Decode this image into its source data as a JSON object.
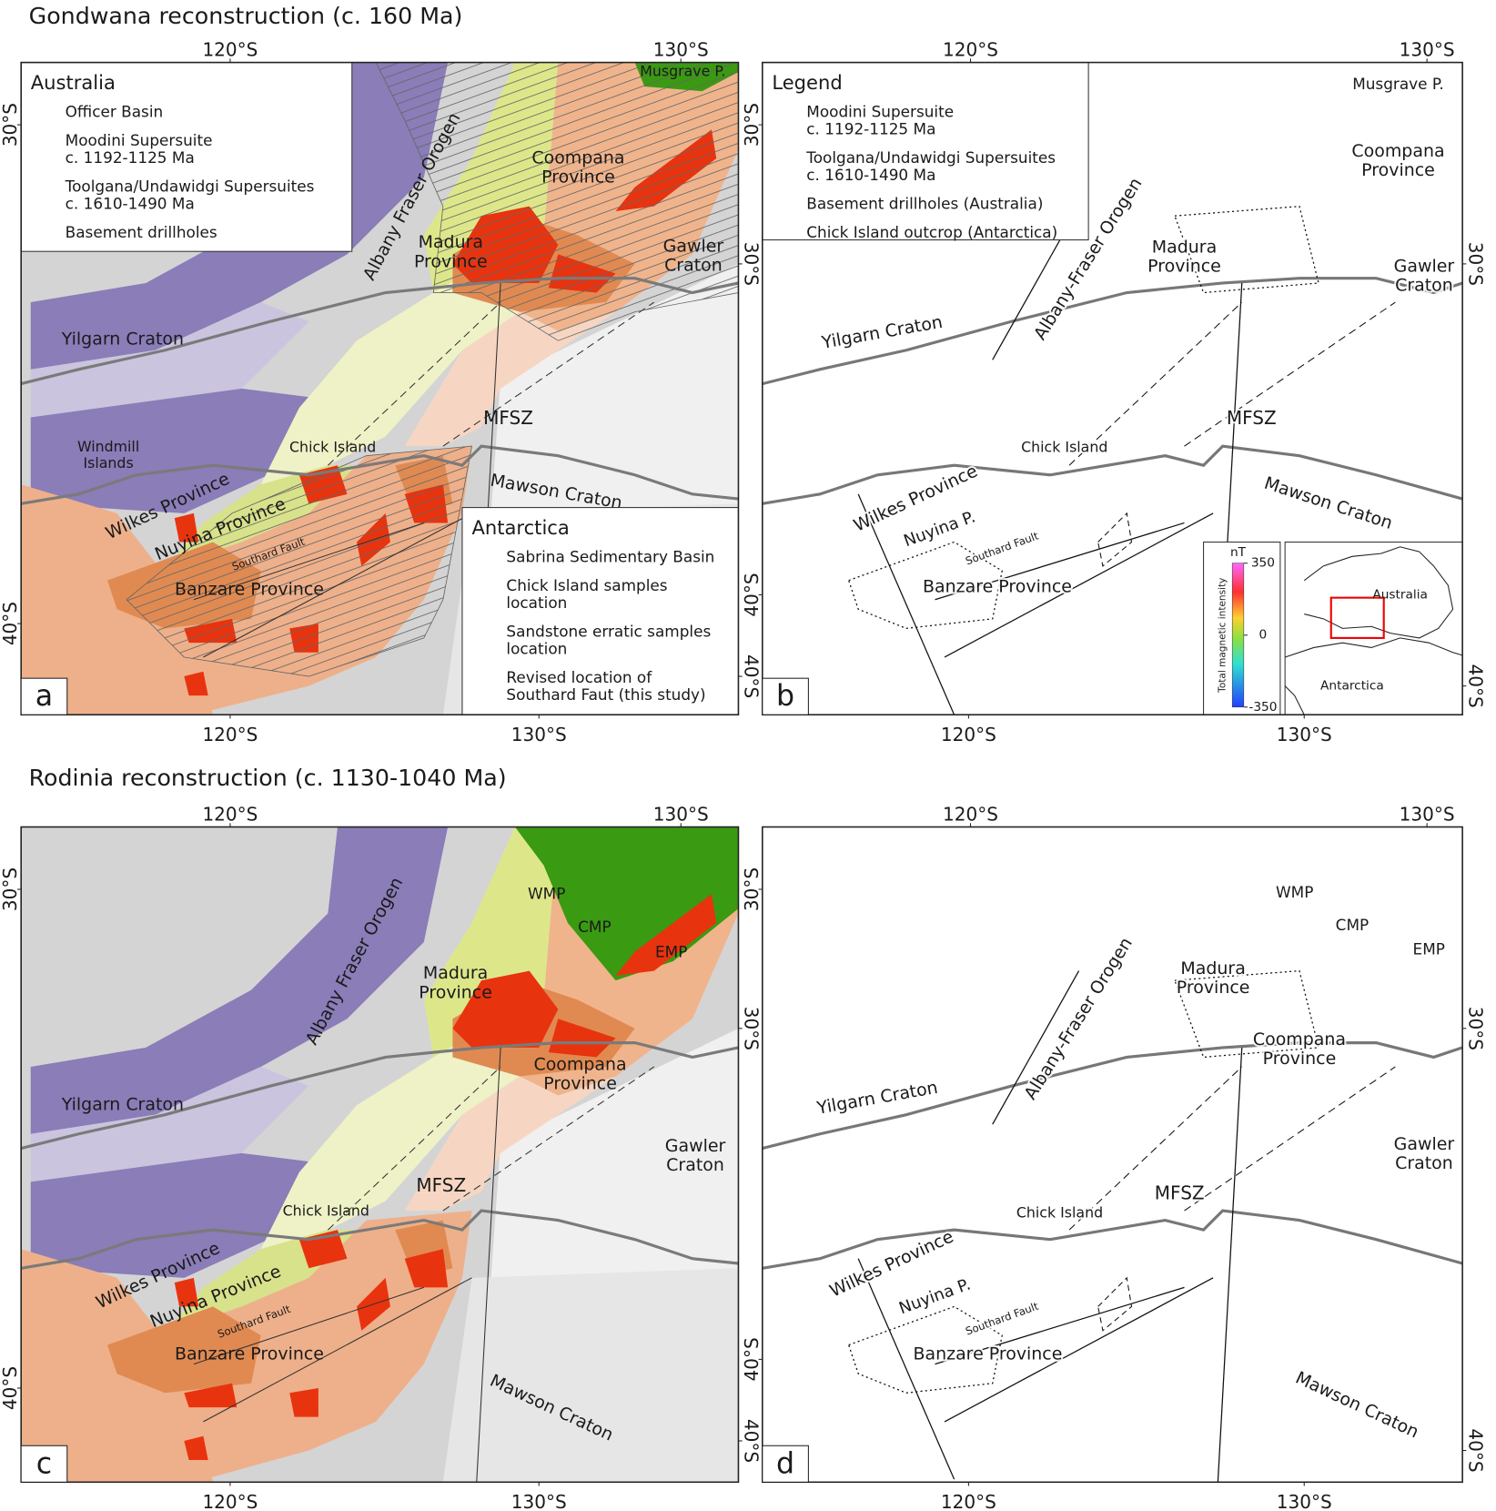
{
  "figure": {
    "titles": [
      "Gondwana reconstruction (c. 160 Ma)",
      "Rodinia reconstruction (c. 1130-1040 Ma)"
    ],
    "panels": [
      {
        "letter": "a",
        "top_axis": [
          "120°S",
          "130°S"
        ],
        "bottom_axis": [
          "120°S",
          "130°S"
        ],
        "left_axis": [
          "30°S",
          "40°S"
        ],
        "right_axis": [
          "30°S",
          "40°S"
        ],
        "labels": [
          [
            "Musgrave P."
          ],
          [
            "Coompana",
            "Province"
          ],
          [
            "Madura",
            "Province"
          ],
          [
            "Gawler",
            "Craton"
          ],
          [
            "Albany Fraser Orogen"
          ],
          [
            "Yilgarn Craton"
          ],
          [
            "MFSZ"
          ],
          [
            "Windmill",
            "Islands"
          ],
          [
            "Chick Island"
          ],
          [
            "Wilkes Province"
          ],
          [
            "Nuyina Province"
          ],
          [
            "Southard Fault"
          ],
          [
            "Banzare Province"
          ],
          [
            "Mawson Craton"
          ]
        ],
        "legends": [
          {
            "title": "Australia",
            "items": [
              [
                "Officer Basin"
              ],
              [
                "Moodini Supersuite",
                "c. 1192-1125 Ma"
              ],
              [
                "Toolgana/Undawidgi Supersuites",
                "c. 1610-1490 Ma"
              ],
              [
                "Basement drillholes"
              ]
            ]
          },
          {
            "title": "Antarctica",
            "items": [
              [
                "Sabrina Sedimentary Basin"
              ],
              [
                "Chick Island samples",
                "location"
              ],
              [
                "Sandstone erratic samples",
                "location"
              ],
              [
                "Revised location of",
                "Southard Faut (this study)"
              ]
            ]
          }
        ]
      },
      {
        "letter": "b",
        "top_axis": [
          "120°S",
          "130°S"
        ],
        "bottom_axis": [
          "120°S",
          "130°S"
        ],
        "left_axis": [
          "30°S",
          "40°S"
        ],
        "right_axis": [
          "30°S",
          "40°S"
        ],
        "labels": [
          [
            "Musgrave P."
          ],
          [
            "Coompana",
            "Province"
          ],
          [
            "Albany-Fraser Orogen"
          ],
          [
            "Madura",
            "Province"
          ],
          [
            "Gawler",
            "Craton"
          ],
          [
            "Yilgarn Craton"
          ],
          [
            "MFSZ"
          ],
          [
            "Chick Island"
          ],
          [
            "Wilkes Province"
          ],
          [
            "Nuyina P."
          ],
          [
            "Southard Fault"
          ],
          [
            "Mawson Craton"
          ],
          [
            "Banzare Province"
          ]
        ],
        "legends": [
          {
            "title": "Legend",
            "items": [
              [
                "Moodini Supersuite",
                "c. 1192-1125 Ma"
              ],
              [
                "Toolgana/Undawidgi Supersuites",
                "c. 1610-1490 Ma"
              ],
              [
                "Basement drillholes (Australia)"
              ],
              [
                "Chick Island outcrop (Antarctica)"
              ]
            ]
          }
        ],
        "colorbar": {
          "unit": "nT",
          "title": "Total magnetic intensity",
          "range": [
            -350,
            350
          ],
          "ticks": [
            350,
            0,
            -350
          ]
        },
        "inset_labels": [
          "Australia",
          "Antarctica"
        ]
      },
      {
        "letter": "c",
        "top_axis": [
          "120°S",
          "130°S"
        ],
        "bottom_axis": [
          "120°S",
          "130°S"
        ],
        "left_axis": [
          "30°S",
          "40°S"
        ],
        "right_axis": [
          "30°S",
          "40°S"
        ],
        "labels": [
          [
            "WMP"
          ],
          [
            "CMP"
          ],
          [
            "EMP"
          ],
          [
            "Madura",
            "Province"
          ],
          [
            "Albany Fraser Orogen"
          ],
          [
            "Coompana",
            "Province"
          ],
          [
            "Yilgarn Craton"
          ],
          [
            "Gawler",
            "Craton"
          ],
          [
            "MFSZ"
          ],
          [
            "Chick Island"
          ],
          [
            "Wilkes Province"
          ],
          [
            "Nuyina Province"
          ],
          [
            "Southard Fault"
          ],
          [
            "Banzare Province"
          ],
          [
            "Mawson Craton"
          ]
        ]
      },
      {
        "letter": "d",
        "top_axis": [
          "120°S",
          "130°S"
        ],
        "bottom_axis": [
          "120°S",
          "130°S"
        ],
        "left_axis": [
          "30°S",
          "40°S"
        ],
        "right_axis": [
          "30°S",
          "40°S"
        ],
        "labels": [
          [
            "WMP"
          ],
          [
            "CMP"
          ],
          [
            "EMP"
          ],
          [
            "Madura",
            "Province"
          ],
          [
            "Albany-Fraser Orogen"
          ],
          [
            "Coompana",
            "Province"
          ],
          [
            "Yilgarn Craton"
          ],
          [
            "Gawler",
            "Craton"
          ],
          [
            "MFSZ"
          ],
          [
            "Chick Island"
          ],
          [
            "Wilkes Province"
          ],
          [
            "Nuyina P."
          ],
          [
            "Southard Fault"
          ],
          [
            "Banzare Province"
          ],
          [
            "Mawson Craton"
          ]
        ]
      }
    ]
  }
}
